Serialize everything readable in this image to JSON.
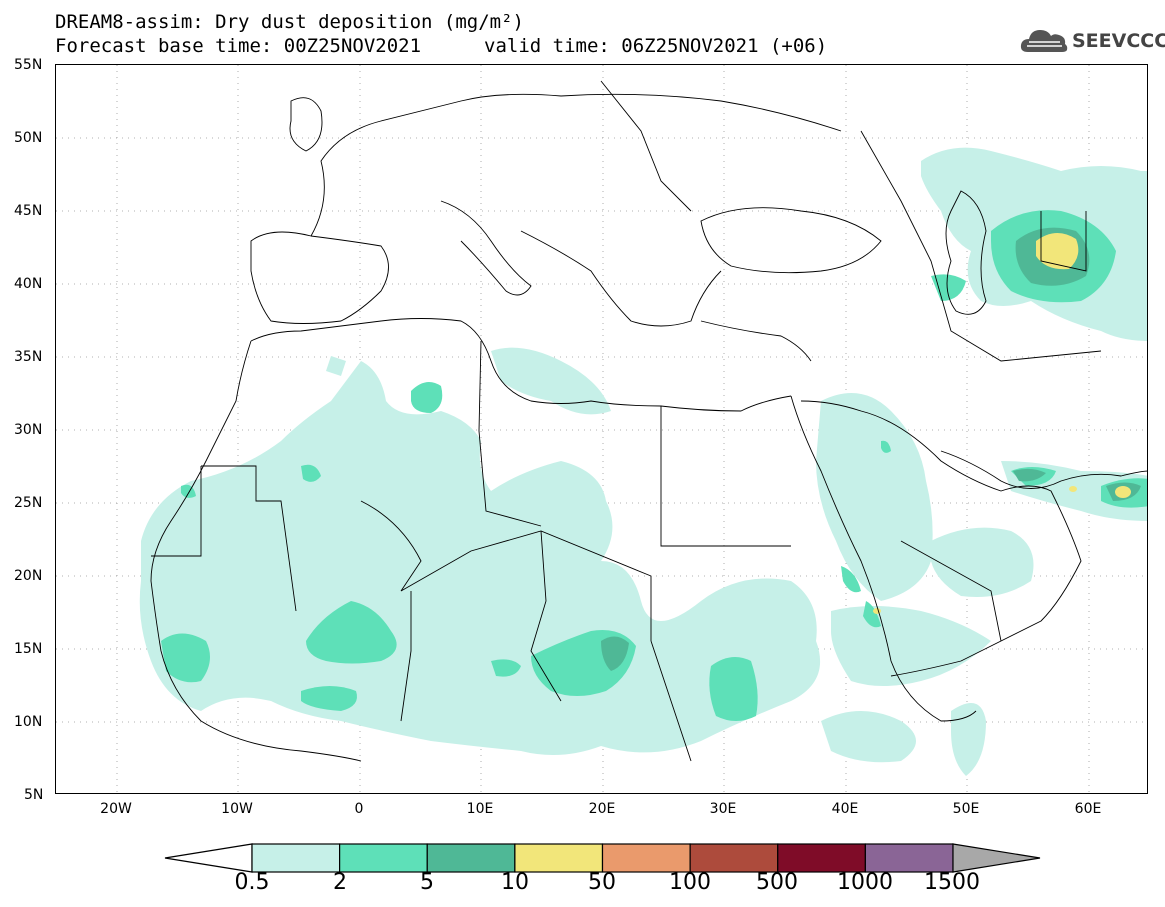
{
  "title_line1": "DREAM8-assim: Dry dust deposition (mg/m²)",
  "title_line2": "Forecast base time: 00Z25NOV2021",
  "valid_time": "valid time: 06Z25NOV2021 (+06)",
  "logo_text": "SEEVCCC",
  "logo_icon": "cloud-icon",
  "y_ticks": [
    "55N",
    "50N",
    "45N",
    "40N",
    "35N",
    "30N",
    "25N",
    "20N",
    "15N",
    "10N",
    "5N"
  ],
  "x_ticks": [
    "20W",
    "10W",
    "0",
    "10E",
    "20E",
    "30E",
    "40E",
    "50E",
    "60E"
  ],
  "colorbar": {
    "labels": [
      "0.5",
      "2",
      "5",
      "10",
      "50",
      "100",
      "500",
      "1000",
      "1500"
    ],
    "colors": [
      "#c6f0e8",
      "#5ee0b8",
      "#4fb896",
      "#f2e67a",
      "#ea9a6c",
      "#ad4b3c",
      "#7f0c28",
      "#8a6596"
    ],
    "over_color": "#a8a8a8",
    "under_color": "#ffffff"
  }
}
